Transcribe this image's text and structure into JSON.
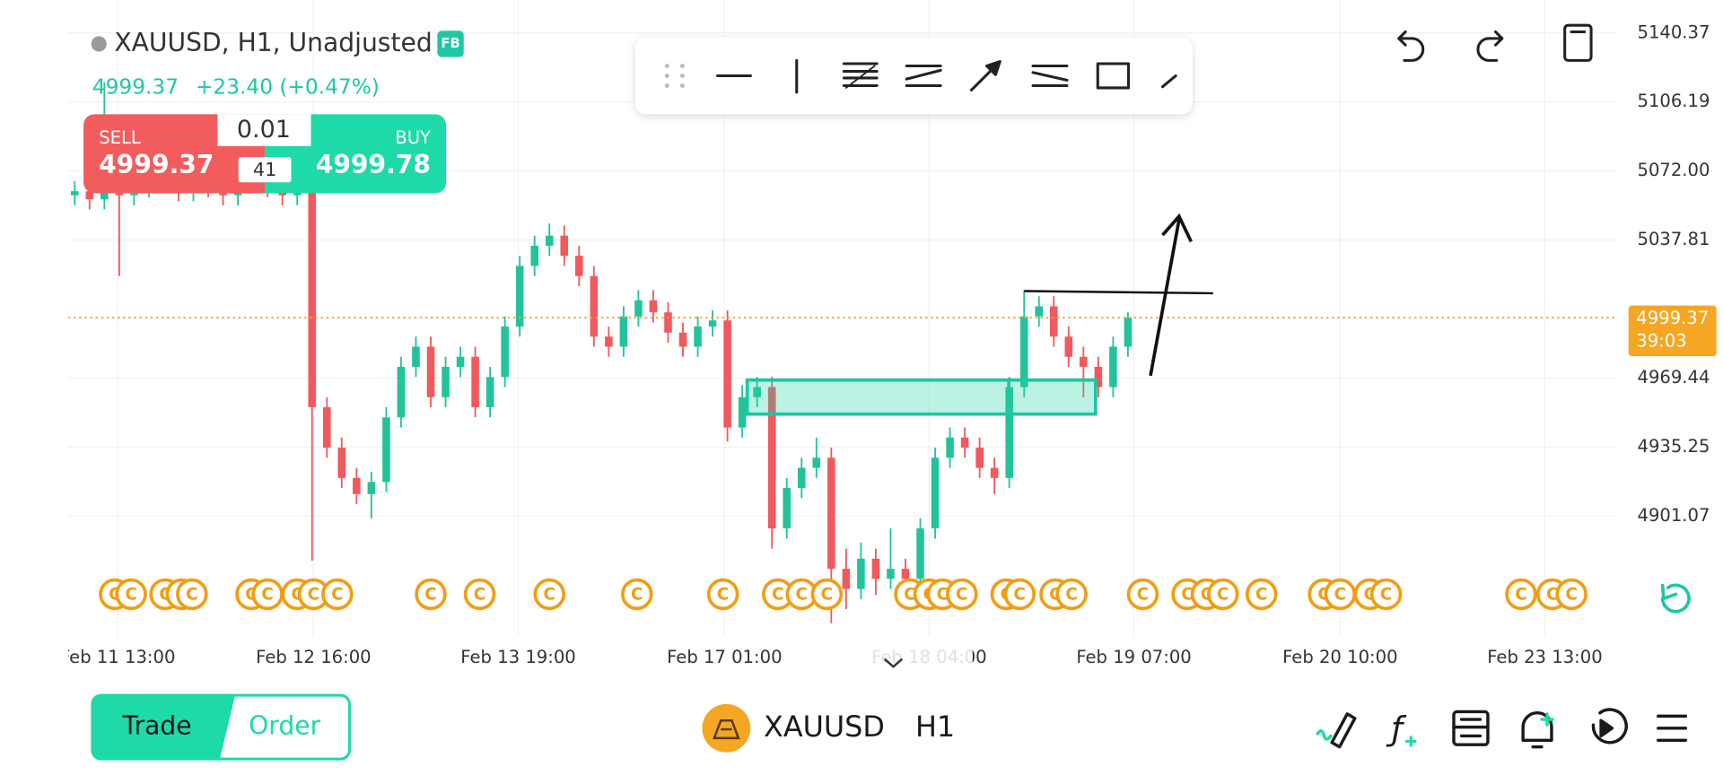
{
  "header": {
    "symbol": "XAUUSD, H1, Unadjusted",
    "badge": "FB",
    "price": "4999.37",
    "change": "+23.40 (+0.47%)"
  },
  "trade_panel": {
    "sell_label": "SELL",
    "sell_price": "4999.37",
    "volume": "0.01",
    "spread": "41",
    "buy_label": "BUY",
    "buy_price": "4999.78"
  },
  "chart_data": {
    "type": "candlestick",
    "open": [
      5060,
      5062,
      5058,
      5066,
      5060,
      5064,
      5070,
      5066,
      5062,
      5068,
      5064,
      5060,
      5066,
      5070,
      5064,
      5060,
      5062,
      4955,
      4935,
      4920,
      4912,
      4918,
      4950,
      4975,
      4985,
      4960,
      4975,
      4980,
      4955,
      4970,
      4995,
      5025,
      5035,
      5040,
      5030,
      5020,
      4990,
      4985,
      5000,
      5008,
      5002,
      4992,
      4985,
      4995,
      4998,
      4945,
      4960,
      4965,
      4895,
      4915,
      4925,
      4930,
      4875,
      4865,
      4880,
      4870,
      4875,
      4870,
      4895,
      4930,
      4940,
      4935,
      4925,
      4920,
      4965,
      5000,
      5005,
      4990,
      4980,
      4975,
      4965,
      4985
    ],
    "high": [
      5067,
      5067,
      5116,
      5071,
      5069,
      5075,
      5075,
      5071,
      5073,
      5073,
      5069,
      5071,
      5075,
      5075,
      5069,
      5067,
      5067,
      4960,
      4940,
      4925,
      4923,
      4955,
      4980,
      4990,
      4990,
      4980,
      4985,
      4985,
      4975,
      5000,
      5030,
      5040,
      5046,
      5045,
      5035,
      5025,
      4995,
      5005,
      5013,
      5013,
      5007,
      4997,
      5000,
      5003,
      5003,
      4966,
      4970,
      4970,
      4920,
      4930,
      4940,
      4935,
      4885,
      4888,
      4885,
      4895,
      4880,
      4900,
      4935,
      4945,
      4945,
      4940,
      4930,
      4970,
      5013,
      5010,
      5010,
      4995,
      4985,
      4980,
      4990,
      5002
    ],
    "low": [
      5055,
      5053,
      5053,
      5020,
      5055,
      5059,
      5061,
      5057,
      5057,
      5059,
      5055,
      5055,
      5061,
      5059,
      5055,
      5055,
      4879,
      4930,
      4915,
      4907,
      4900,
      4913,
      4945,
      4970,
      4955,
      4955,
      4970,
      4950,
      4950,
      4965,
      4990,
      5020,
      5030,
      5025,
      5015,
      4985,
      4980,
      4980,
      4995,
      4997,
      4987,
      4980,
      4980,
      4990,
      4938,
      4940,
      4955,
      4885,
      4890,
      4910,
      4920,
      4848,
      4855,
      4860,
      4862,
      4865,
      4865,
      4865,
      4890,
      4925,
      4930,
      4920,
      4912,
      4915,
      4960,
      4995,
      4985,
      4975,
      4960,
      4960,
      4960,
      4980
    ],
    "close": [
      5062,
      5058,
      5066,
      5060,
      5064,
      5070,
      5066,
      5062,
      5068,
      5064,
      5060,
      5066,
      5070,
      5064,
      5060,
      5062,
      4955,
      4935,
      4920,
      4912,
      4918,
      4950,
      4975,
      4985,
      4960,
      4975,
      4980,
      4955,
      4970,
      4995,
      5025,
      5035,
      5040,
      5030,
      5020,
      4990,
      4985,
      5000,
      5008,
      5002,
      4992,
      4985,
      4995,
      4998,
      4945,
      4960,
      4965,
      4895,
      4915,
      4925,
      4930,
      4875,
      4865,
      4880,
      4870,
      4875,
      4870,
      4895,
      4930,
      4940,
      4935,
      4925,
      4920,
      4965,
      5000,
      5005,
      4990,
      4980,
      4975,
      4965,
      4985,
      4999.37
    ],
    "up_color": "#22c39b",
    "down_color": "#f0595d",
    "ylim": [
      4841.2,
      5156.7
    ],
    "yticks": [
      5140.37,
      5106.19,
      {
        "value": 5072,
        "label": "5072.00"
      },
      5037.81,
      4969.44,
      4935.25,
      4901.07
    ],
    "grid": true,
    "xlabels": [
      {
        "value": 2.9,
        "label": "Feb 11 13:00"
      },
      {
        "value": 16.1,
        "label": "Feb 12 16:00"
      },
      {
        "value": 29.9,
        "label": "Feb 13 19:00"
      },
      {
        "value": 43.8,
        "label": "Feb 17 01:00"
      },
      {
        "value": 57.6,
        "label": "Feb 18 04:00"
      },
      {
        "value": 71.4,
        "label": "Feb 19 07:00"
      },
      {
        "value": 85.3,
        "label": "Feb 20 10:00"
      },
      {
        "value": 99.1,
        "label": "Feb 23 13:00"
      }
    ],
    "events": {
      "label": "C",
      "color": "#f39c12",
      "at": [
        2.7,
        3.8,
        6.1,
        7.2,
        7.9,
        11.9,
        13,
        15,
        16.1,
        17.7,
        24,
        27.3,
        32,
        37.9,
        43.7,
        47.4,
        49,
        50.7,
        56.3,
        57.6,
        58.5,
        59.8,
        62.8,
        63.7,
        66.1,
        67.2,
        72,
        75,
        76.3,
        77.4,
        80,
        84.2,
        85.3,
        87.3,
        88.4,
        97.5,
        99.6,
        100.9
      ]
    },
    "last_price": {
      "value": 4999.37,
      "label": "4999.37",
      "countdown": "39:03",
      "color": "#f5a623"
    }
  },
  "bottom_bar": {
    "trade": "Trade",
    "order": "Order",
    "symbol": "XAUUSD",
    "timeframe": "H1"
  }
}
